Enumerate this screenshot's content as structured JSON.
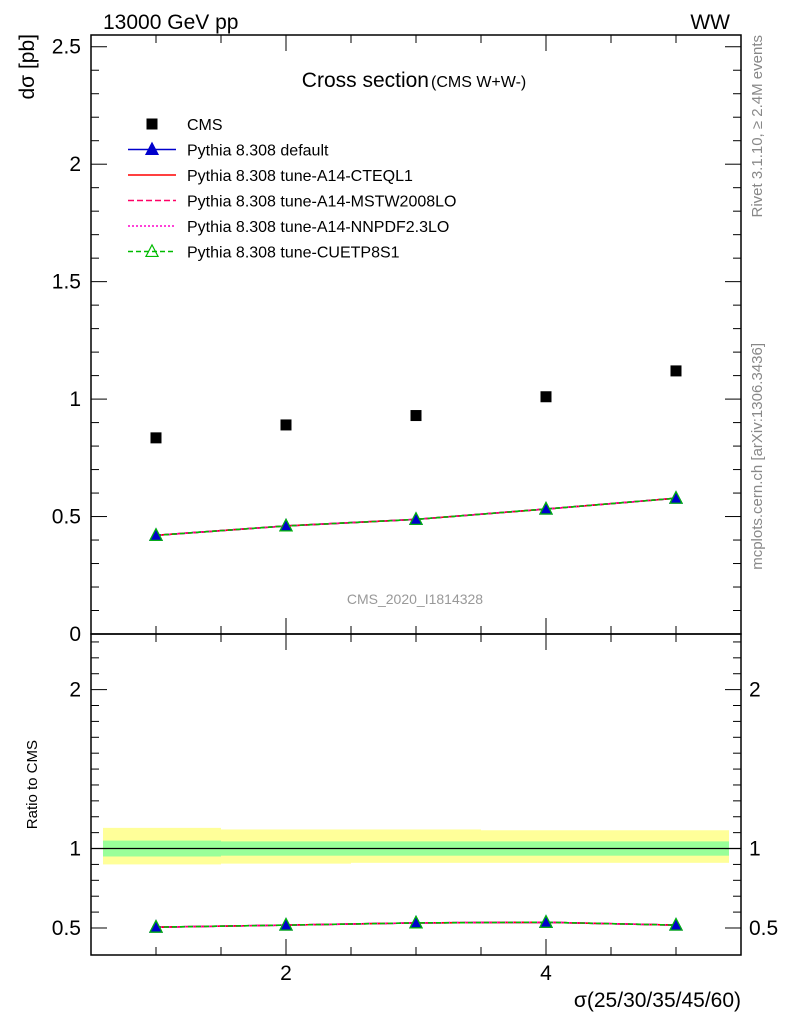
{
  "header": {
    "left": "13000 GeV pp",
    "right": "WW"
  },
  "side_labels": {
    "rivet": "Rivet 3.1.10, ≥ 2.4M events",
    "mcplots": "mcplots.cern.ch [arXiv:1306.3436]"
  },
  "watermark": "CMS_2020_I1814328",
  "title": {
    "main": "Cross section",
    "sub": "(CMS W+W-)"
  },
  "colors": {
    "cms": "#000000",
    "default": "#0000cc",
    "cteql1": "#ff0000",
    "mstw": "#ff0066",
    "nnpdf": "#ff00cc",
    "cuetp": "#00bb00",
    "band_inner": "#99ff99",
    "band_outer": "#ffff99"
  },
  "chart_data": [
    {
      "type": "scatter",
      "panel": "main",
      "xlabel": "",
      "ylabel": "dσ [pb]",
      "xlim": [
        0.5,
        5.5
      ],
      "ylim": [
        0,
        2.55
      ],
      "yticks": [
        0,
        0.5,
        1,
        1.5,
        2,
        2.5
      ],
      "ytick_labels": [
        "0",
        "0.5",
        "1",
        "1.5",
        "2",
        "2.5"
      ],
      "legend_position": "top-left",
      "x": [
        1,
        2,
        3,
        4,
        5
      ],
      "series": [
        {
          "name": "CMS",
          "key": "cms",
          "values": [
            0.835,
            0.89,
            0.93,
            1.01,
            1.12
          ]
        },
        {
          "name": "Pythia 8.308 default",
          "key": "default",
          "values": [
            0.42,
            0.46,
            0.488,
            0.532,
            0.578
          ]
        },
        {
          "name": "Pythia 8.308 tune-A14-CTEQL1",
          "key": "cteql1",
          "values": [
            0.42,
            0.46,
            0.488,
            0.532,
            0.578
          ]
        },
        {
          "name": "Pythia 8.308 tune-A14-MSTW2008LO",
          "key": "mstw",
          "values": [
            0.42,
            0.46,
            0.488,
            0.532,
            0.578
          ]
        },
        {
          "name": "Pythia 8.308 tune-A14-NNPDF2.3LO",
          "key": "nnpdf",
          "values": [
            0.42,
            0.46,
            0.488,
            0.532,
            0.578
          ]
        },
        {
          "name": "Pythia 8.308 tune-CUETP8S1",
          "key": "cuetp",
          "values": [
            0.42,
            0.46,
            0.488,
            0.532,
            0.578
          ]
        }
      ]
    },
    {
      "type": "line",
      "panel": "ratio",
      "xlabel": "σ(25/30/35/45/60)",
      "ylabel": "Ratio to CMS",
      "xlim": [
        0.5,
        5.5
      ],
      "ylim": [
        0.33,
        2.35
      ],
      "yticks": [
        0.5,
        1,
        2
      ],
      "ytick_labels": [
        "0.5",
        "1",
        "2"
      ],
      "xticks": [
        2,
        4
      ],
      "xtick_labels": [
        "2",
        "4"
      ],
      "x": [
        1,
        2,
        3,
        4,
        5
      ],
      "reference": 1,
      "bands": {
        "edges": [
          0.5,
          1.5,
          2.5,
          3.5,
          4.5,
          5.5
        ],
        "inner": [
          [
            0.95,
            1.05
          ],
          [
            0.955,
            1.045
          ],
          [
            0.955,
            1.045
          ],
          [
            0.955,
            1.045
          ],
          [
            0.955,
            1.045
          ]
        ],
        "outer": [
          [
            0.9,
            1.13
          ],
          [
            0.905,
            1.12
          ],
          [
            0.91,
            1.12
          ],
          [
            0.91,
            1.115
          ],
          [
            0.91,
            1.115
          ]
        ]
      },
      "series": [
        {
          "name": "Pythia 8.308 default",
          "key": "default",
          "values": [
            0.505,
            0.518,
            0.532,
            0.536,
            0.518
          ]
        },
        {
          "name": "Pythia 8.308 tune-A14-CTEQL1",
          "key": "cteql1",
          "values": [
            0.505,
            0.518,
            0.532,
            0.536,
            0.518
          ]
        },
        {
          "name": "Pythia 8.308 tune-A14-MSTW2008LO",
          "key": "mstw",
          "values": [
            0.505,
            0.518,
            0.532,
            0.536,
            0.518
          ]
        },
        {
          "name": "Pythia 8.308 tune-A14-NNPDF2.3LO",
          "key": "nnpdf",
          "values": [
            0.505,
            0.518,
            0.532,
            0.536,
            0.518
          ]
        },
        {
          "name": "Pythia 8.308 tune-CUETP8S1",
          "key": "cuetp",
          "values": [
            0.505,
            0.518,
            0.532,
            0.536,
            0.518
          ]
        }
      ]
    }
  ]
}
